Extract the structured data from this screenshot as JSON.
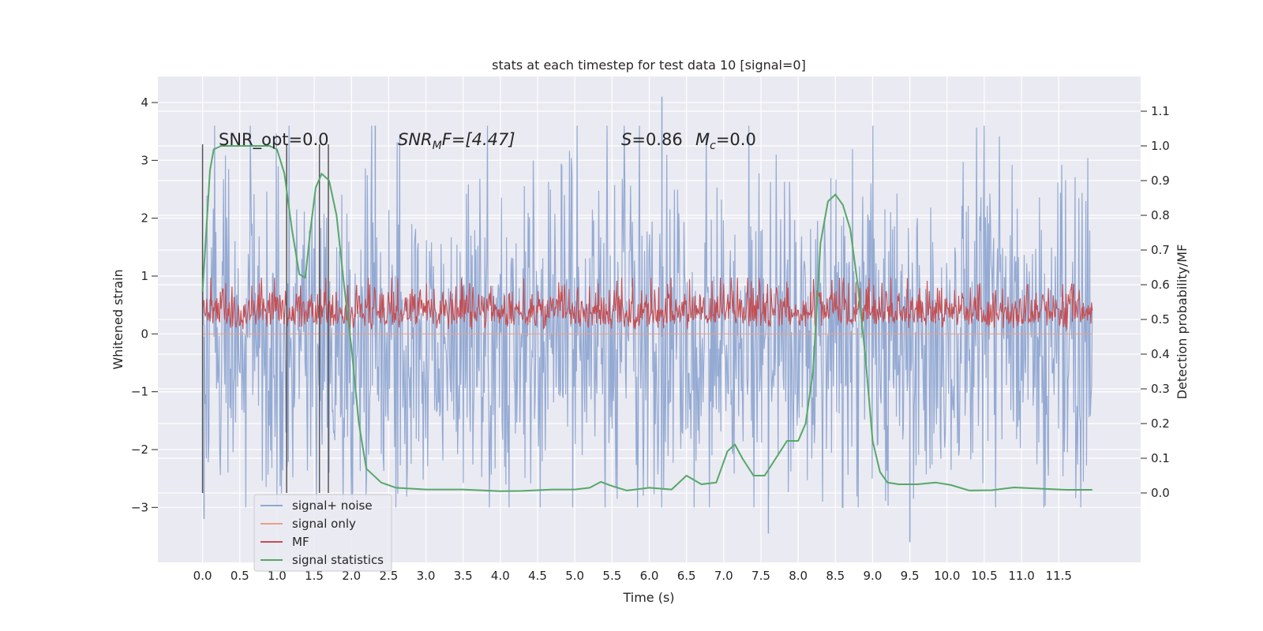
{
  "chart_data": {
    "type": "line",
    "title": "stats at each timestep for test data 10 [signal=0]",
    "xlabel": "Time (s)",
    "ylabel_left": "Whitened strain",
    "ylabel_right": "Detection probability/MF",
    "xlim": [
      -0.6,
      12.6
    ],
    "ylim_left": [
      -3.95,
      4.45
    ],
    "ylim_right": [
      -0.2,
      1.2
    ],
    "x_ticks": [
      "0.0",
      "0.5",
      "1.0",
      "1.5",
      "2.0",
      "2.5",
      "3.0",
      "3.5",
      "4.0",
      "4.5",
      "5.0",
      "5.5",
      "6.0",
      "6.5",
      "7.0",
      "7.5",
      "8.0",
      "8.5",
      "9.0",
      "9.5",
      "10.0",
      "10.5",
      "11.0",
      "11.5"
    ],
    "y_ticks_left": [
      "−3",
      "−2",
      "−1",
      "0",
      "1",
      "2",
      "3",
      "4"
    ],
    "y_ticks_right": [
      "0.0",
      "0.1",
      "0.2",
      "0.3",
      "0.4",
      "0.5",
      "0.6",
      "0.7",
      "0.8",
      "0.9",
      "1.0",
      "1.1"
    ],
    "grid": true,
    "legend": {
      "placement": "lower-left",
      "entries": [
        {
          "label": "signal+ noise",
          "color": "#8fa6d1"
        },
        {
          "label": "signal only",
          "color": "#e8a08a"
        },
        {
          "label": "MF",
          "color": "#c44e52"
        },
        {
          "label": "signal statistics",
          "color": "#55a868"
        }
      ]
    },
    "annotations": {
      "snr_opt": "SNR_opt=0.0",
      "snr_mf_name": "SNR",
      "snr_mf_sub": "M",
      "snr_mf_tail": "F=[4.47]",
      "s_name": "S",
      "s_tail": "=0.86",
      "mc_name": "M",
      "mc_sub": "c",
      "mc_tail": "=0.0"
    },
    "vertical_markers_x": [
      0.0,
      1.13,
      1.57,
      1.69
    ],
    "series": [
      {
        "name": "signal+ noise",
        "color": "#8fa6d1",
        "axis": "left",
        "description_range": [
          -3.2,
          4.1
        ],
        "noise_band": [
          -1.55,
          1.45
        ],
        "x_range": [
          0.0,
          11.95
        ],
        "notable_peaks": [
          [
            2.32,
            3.6
          ],
          [
            6.17,
            4.1
          ],
          [
            7.6,
            -3.45
          ],
          [
            9.5,
            -3.6
          ],
          [
            0.02,
            -3.2
          ]
        ]
      },
      {
        "name": "signal only",
        "color": "#e8a08a",
        "axis": "left",
        "x": [
          0.0,
          11.95
        ],
        "y": [
          0.0,
          0.0
        ]
      },
      {
        "name": "MF",
        "color": "#c44e52",
        "axis": "right",
        "band": [
          0.46,
          0.6
        ],
        "baseline": 0.5,
        "x_range": [
          0.0,
          11.95
        ]
      },
      {
        "name": "signal statistics",
        "color": "#55a868",
        "axis": "right",
        "x": [
          0.0,
          0.1,
          0.15,
          0.25,
          0.5,
          0.75,
          0.9,
          1.0,
          1.1,
          1.2,
          1.3,
          1.38,
          1.45,
          1.52,
          1.6,
          1.7,
          1.8,
          1.9,
          2.0,
          2.1,
          2.2,
          2.4,
          2.6,
          3.0,
          3.5,
          4.0,
          4.3,
          4.7,
          5.0,
          5.2,
          5.35,
          5.5,
          5.7,
          6.0,
          6.3,
          6.5,
          6.7,
          6.9,
          7.05,
          7.15,
          7.25,
          7.4,
          7.55,
          7.7,
          7.85,
          8.0,
          8.1,
          8.2,
          8.3,
          8.4,
          8.5,
          8.6,
          8.7,
          8.8,
          8.9,
          9.0,
          9.1,
          9.2,
          9.35,
          9.6,
          9.85,
          10.05,
          10.3,
          10.6,
          10.9,
          11.3,
          11.6,
          11.95
        ],
        "y": [
          0.58,
          0.93,
          0.99,
          1.0,
          1.0,
          1.0,
          1.0,
          0.99,
          0.92,
          0.76,
          0.63,
          0.62,
          0.76,
          0.88,
          0.92,
          0.9,
          0.8,
          0.6,
          0.42,
          0.2,
          0.07,
          0.03,
          0.015,
          0.01,
          0.01,
          0.005,
          0.006,
          0.01,
          0.01,
          0.015,
          0.032,
          0.02,
          0.007,
          0.015,
          0.01,
          0.05,
          0.025,
          0.03,
          0.12,
          0.14,
          0.1,
          0.05,
          0.05,
          0.1,
          0.15,
          0.15,
          0.2,
          0.35,
          0.72,
          0.84,
          0.86,
          0.83,
          0.76,
          0.6,
          0.4,
          0.15,
          0.06,
          0.03,
          0.025,
          0.025,
          0.03,
          0.023,
          0.007,
          0.008,
          0.016,
          0.012,
          0.009,
          0.009
        ]
      }
    ]
  }
}
